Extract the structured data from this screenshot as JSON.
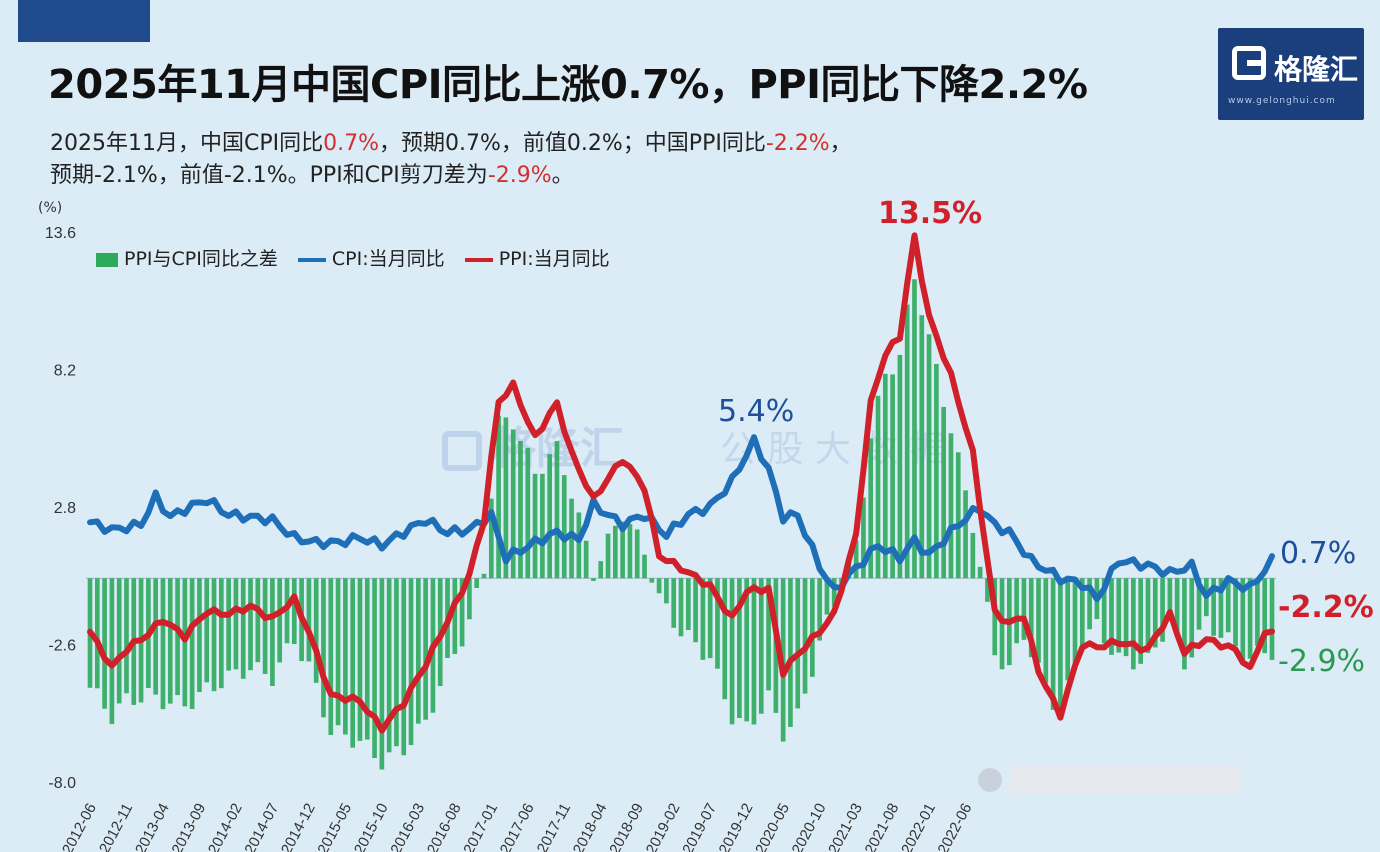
{
  "title": "2025年11月中国CPI同比上涨0.7%，PPI同比下降2.2%",
  "logo": {
    "text": "格隆汇",
    "url": "www.gelonghui.com"
  },
  "subtitle": {
    "l1_a": "2025年11月，中国CPI同比",
    "l1_b": "0.7%",
    "l1_c": "，预期0.7%，前值0.2%；中国PPI同比",
    "l1_d": "-2.2%",
    "l1_e": "，",
    "l2_a": "预期-2.1%，前值-2.1%。PPI和CPI剪刀差为",
    "l2_b": "-2.9%",
    "l2_c": "。"
  },
  "watermark": {
    "text1": "格隆汇",
    "text2": "公 股 大 数 据"
  },
  "colors": {
    "bar": "#2eaa5c",
    "cpi": "#1e6fb8",
    "ppi": "#d0212b",
    "bg": "#dcecf7",
    "red_text": "#d0312d",
    "green_text": "#2a9a50",
    "blue_text": "#1f4f9c"
  },
  "chart_data": {
    "type": "line",
    "ylabel": "(%)",
    "ylim": [
      -8.0,
      13.6
    ],
    "yticks": [
      "13.6",
      "8.2",
      "2.8",
      "-2.6",
      "-8.0"
    ],
    "x_tick_labels": [
      "2012-06",
      "2012-11",
      "2013-04",
      "2013-09",
      "2014-02",
      "2014-07",
      "2014-12",
      "2015-05",
      "2015-10",
      "2016-03",
      "2016-08",
      "2017-01",
      "2017-06",
      "2017-11",
      "2018-04",
      "2018-09",
      "2019-02",
      "2019-07",
      "2019-12",
      "2020-05",
      "2020-10",
      "2021-03",
      "2021-08",
      "2022-01",
      "2022-06"
    ],
    "legend": [
      "PPI与CPI同比之差",
      "CPI:当月同比",
      "PPI:当月同比"
    ],
    "annotations": [
      {
        "text": "13.5%",
        "color": "ppi"
      },
      {
        "text": "5.4%",
        "color": "cpi"
      },
      {
        "text": "0.7%",
        "color": "cpi"
      },
      {
        "text": "-2.2%",
        "color": "ppi"
      },
      {
        "text": "-2.9%",
        "color": "bar"
      }
    ],
    "series": [
      {
        "name": "CPI:当月同比",
        "anchors": [
          [
            2012.42,
            2.2
          ],
          [
            2012.67,
            1.9
          ],
          [
            2012.83,
            2.0
          ],
          [
            2013.0,
            2.1
          ],
          [
            2013.17,
            3.2
          ],
          [
            2013.33,
            2.4
          ],
          [
            2013.5,
            2.7
          ],
          [
            2013.75,
            3.1
          ],
          [
            2014.0,
            2.5
          ],
          [
            2014.25,
            2.4
          ],
          [
            2014.5,
            2.3
          ],
          [
            2014.75,
            1.6
          ],
          [
            2015.0,
            1.4
          ],
          [
            2015.25,
            1.4
          ],
          [
            2015.5,
            1.6
          ],
          [
            2015.75,
            1.3
          ],
          [
            2016.0,
            1.8
          ],
          [
            2016.25,
            2.3
          ],
          [
            2016.5,
            1.8
          ],
          [
            2016.75,
            1.9
          ],
          [
            2017.0,
            2.5
          ],
          [
            2017.17,
            0.8
          ],
          [
            2017.5,
            1.4
          ],
          [
            2017.75,
            1.8
          ],
          [
            2018.0,
            1.5
          ],
          [
            2018.17,
            2.9
          ],
          [
            2018.5,
            2.1
          ],
          [
            2018.75,
            2.5
          ],
          [
            2019.0,
            1.7
          ],
          [
            2019.25,
            2.5
          ],
          [
            2019.5,
            2.8
          ],
          [
            2019.75,
            3.8
          ],
          [
            2020.0,
            5.4
          ],
          [
            2020.17,
            4.3
          ],
          [
            2020.33,
            2.4
          ],
          [
            2020.5,
            2.5
          ],
          [
            2020.75,
            0.5
          ],
          [
            2020.92,
            -0.5
          ],
          [
            2021.17,
            0.4
          ],
          [
            2021.42,
            1.3
          ],
          [
            2021.67,
            0.8
          ],
          [
            2021.83,
            1.5
          ],
          [
            2022.0,
            0.9
          ],
          [
            2022.33,
            2.1
          ],
          [
            2022.58,
            2.8
          ],
          [
            2022.75,
            2.1
          ],
          [
            2022.92,
            1.8
          ],
          [
            2023.17,
            0.7
          ],
          [
            2023.5,
            0.0
          ],
          [
            2023.75,
            -0.2
          ],
          [
            2023.92,
            -0.8
          ],
          [
            2024.17,
            0.7
          ],
          [
            2024.5,
            0.5
          ],
          [
            2024.75,
            0.2
          ],
          [
            2025.0,
            0.5
          ],
          [
            2025.17,
            -0.7
          ],
          [
            2025.42,
            -0.1
          ],
          [
            2025.67,
            -0.4
          ],
          [
            2025.92,
            0.7
          ]
        ]
      },
      {
        "name": "PPI:当月同比",
        "anchors": [
          [
            2012.42,
            -2.1
          ],
          [
            2012.67,
            -3.5
          ],
          [
            2012.83,
            -2.8
          ],
          [
            2013.08,
            -2.2
          ],
          [
            2013.25,
            -1.6
          ],
          [
            2013.5,
            -2.3
          ],
          [
            2013.75,
            -1.3
          ],
          [
            2014.0,
            -1.4
          ],
          [
            2014.25,
            -1.1
          ],
          [
            2014.5,
            -1.6
          ],
          [
            2014.75,
            -0.8
          ],
          [
            2014.92,
            -2.1
          ],
          [
            2015.17,
            -4.6
          ],
          [
            2015.5,
            -4.8
          ],
          [
            2015.75,
            -5.9
          ],
          [
            2016.0,
            -4.9
          ],
          [
            2016.25,
            -3.4
          ],
          [
            2016.5,
            -1.7
          ],
          [
            2016.75,
            0.1
          ],
          [
            2016.92,
            2.3
          ],
          [
            2017.08,
            6.9
          ],
          [
            2017.25,
            7.6
          ],
          [
            2017.5,
            5.5
          ],
          [
            2017.75,
            6.9
          ],
          [
            2017.92,
            4.9
          ],
          [
            2018.17,
            3.1
          ],
          [
            2018.5,
            4.7
          ],
          [
            2018.75,
            3.6
          ],
          [
            2018.92,
            0.9
          ],
          [
            2019.17,
            0.4
          ],
          [
            2019.5,
            -0.3
          ],
          [
            2019.75,
            -1.6
          ],
          [
            2019.92,
            -0.5
          ],
          [
            2020.17,
            -0.4
          ],
          [
            2020.33,
            -3.7
          ],
          [
            2020.5,
            -3.0
          ],
          [
            2020.75,
            -2.1
          ],
          [
            2020.92,
            -1.4
          ],
          [
            2021.17,
            1.7
          ],
          [
            2021.33,
            6.8
          ],
          [
            2021.5,
            8.8
          ],
          [
            2021.67,
            9.5
          ],
          [
            2021.83,
            13.5
          ],
          [
            2022.0,
            10.3
          ],
          [
            2022.25,
            8.0
          ],
          [
            2022.5,
            5.0
          ],
          [
            2022.75,
            -1.3
          ],
          [
            2022.92,
            -1.8
          ],
          [
            2023.08,
            -1.4
          ],
          [
            2023.25,
            -3.6
          ],
          [
            2023.5,
            -5.4
          ],
          [
            2023.75,
            -2.6
          ],
          [
            2023.92,
            -2.7
          ],
          [
            2024.17,
            -2.5
          ],
          [
            2024.5,
            -2.8
          ],
          [
            2024.75,
            -1.4
          ],
          [
            2024.92,
            -2.9
          ],
          [
            2025.17,
            -2.4
          ],
          [
            2025.5,
            -2.8
          ],
          [
            2025.67,
            -3.6
          ],
          [
            2025.83,
            -2.1
          ],
          [
            2025.92,
            -2.2
          ]
        ]
      },
      {
        "name": "PPI与CPI同比之差",
        "anchors": [
          [
            2012.42,
            -4.3
          ],
          [
            2012.67,
            -5.4
          ],
          [
            2012.83,
            -4.8
          ],
          [
            2013.08,
            -4.6
          ],
          [
            2013.25,
            -4.8
          ],
          [
            2013.5,
            -5.0
          ],
          [
            2013.75,
            -4.4
          ],
          [
            2014.0,
            -3.9
          ],
          [
            2014.25,
            -3.5
          ],
          [
            2014.5,
            -3.9
          ],
          [
            2014.75,
            -2.4
          ],
          [
            2014.92,
            -3.5
          ],
          [
            2015.17,
            -6.0
          ],
          [
            2015.5,
            -6.4
          ],
          [
            2015.75,
            -7.2
          ],
          [
            2016.0,
            -6.7
          ],
          [
            2016.25,
            -5.7
          ],
          [
            2016.5,
            -3.5
          ],
          [
            2016.75,
            -1.8
          ],
          [
            2016.92,
            0.4
          ],
          [
            2017.08,
            6.1
          ],
          [
            2017.25,
            6.2
          ],
          [
            2017.5,
            4.1
          ],
          [
            2017.75,
            5.1
          ],
          [
            2017.92,
            3.4
          ],
          [
            2018.17,
            0.2
          ],
          [
            2018.5,
            2.6
          ],
          [
            2018.75,
            1.1
          ],
          [
            2018.92,
            -0.8
          ],
          [
            2019.17,
            -2.1
          ],
          [
            2019.5,
            -3.1
          ],
          [
            2019.75,
            -5.4
          ],
          [
            2019.92,
            -5.9
          ],
          [
            2020.17,
            -4.7
          ],
          [
            2020.33,
            -6.1
          ],
          [
            2020.5,
            -5.5
          ],
          [
            2020.75,
            -2.6
          ],
          [
            2020.92,
            -0.9
          ],
          [
            2021.17,
            1.3
          ],
          [
            2021.33,
            5.5
          ],
          [
            2021.5,
            8.0
          ],
          [
            2021.67,
            8.7
          ],
          [
            2021.83,
            12.0
          ],
          [
            2022.0,
            9.4
          ],
          [
            2022.25,
            5.9
          ],
          [
            2022.5,
            2.2
          ],
          [
            2022.75,
            -2.9
          ],
          [
            2022.92,
            -3.6
          ],
          [
            2023.08,
            -2.1
          ],
          [
            2023.25,
            -3.6
          ],
          [
            2023.5,
            -5.4
          ],
          [
            2023.75,
            -2.4
          ],
          [
            2023.92,
            -1.9
          ],
          [
            2024.17,
            -3.2
          ],
          [
            2024.5,
            -3.3
          ],
          [
            2024.75,
            -1.6
          ],
          [
            2024.92,
            -3.4
          ],
          [
            2025.17,
            -1.7
          ],
          [
            2025.5,
            -2.7
          ],
          [
            2025.67,
            -3.2
          ],
          [
            2025.83,
            -2.8
          ],
          [
            2025.92,
            -2.9
          ]
        ]
      }
    ]
  }
}
